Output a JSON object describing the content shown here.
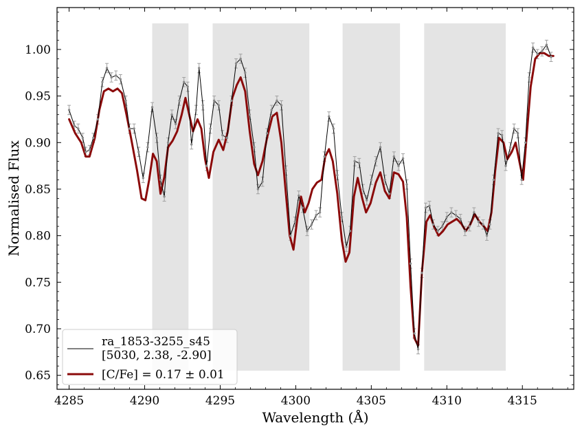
{
  "chart_data": {
    "type": "line",
    "xlabel": "Wavelength (Å)",
    "ylabel": "Normalised Flux",
    "xlim": [
      4284.2,
      4318.4
    ],
    "ylim": [
      0.635,
      1.045
    ],
    "xticks": [
      4285,
      4290,
      4295,
      4300,
      4305,
      4310,
      4315
    ],
    "yticks": [
      0.65,
      0.7,
      0.75,
      0.8,
      0.85,
      0.9,
      0.95,
      1.0
    ],
    "xtick_labels": [
      "4285",
      "4290",
      "4295",
      "4300",
      "4305",
      "4310",
      "4315"
    ],
    "ytick_labels": [
      "0.65",
      "0.70",
      "0.75",
      "0.80",
      "0.85",
      "0.90",
      "0.95",
      "1.00"
    ],
    "grid": false,
    "legend_position": "lower-left",
    "shaded_regions": [
      {
        "x0": 4290.5,
        "x1": 4292.9,
        "y0": 0.655,
        "y1": 1.028
      },
      {
        "x0": 4294.5,
        "x1": 4300.9,
        "y0": 0.655,
        "y1": 1.028
      },
      {
        "x0": 4303.1,
        "x1": 4306.9,
        "y0": 0.655,
        "y1": 1.028
      },
      {
        "x0": 4308.5,
        "x1": 4313.9,
        "y0": 0.655,
        "y1": 1.028
      }
    ],
    "shade_color": "#e4e4e4",
    "series": [
      {
        "name": "ra_1853-3255_s45",
        "name_line2": "[5030, 2.38, -2.90]",
        "role": "observed",
        "color": "#000000",
        "errorbar_color": "#a0a0a0",
        "points": [
          [
            4285.0,
            0.935,
            0.005
          ],
          [
            4285.35,
            0.918,
            0.005
          ],
          [
            4285.6,
            0.915,
            0.005
          ],
          [
            4285.9,
            0.905,
            0.005
          ],
          [
            4286.1,
            0.89,
            0.005
          ],
          [
            4286.35,
            0.892,
            0.005
          ],
          [
            4286.6,
            0.905,
            0.005
          ],
          [
            4286.9,
            0.925,
            0.005
          ],
          [
            4287.2,
            0.965,
            0.005
          ],
          [
            4287.5,
            0.98,
            0.005
          ],
          [
            4287.8,
            0.97,
            0.005
          ],
          [
            4288.1,
            0.972,
            0.005
          ],
          [
            4288.4,
            0.968,
            0.005
          ],
          [
            4288.75,
            0.945,
            0.005
          ],
          [
            4289.0,
            0.915,
            0.005
          ],
          [
            4289.3,
            0.915,
            0.005
          ],
          [
            4289.6,
            0.89,
            0.005
          ],
          [
            4289.9,
            0.862,
            0.005
          ],
          [
            4290.2,
            0.895,
            0.005
          ],
          [
            4290.5,
            0.938,
            0.005
          ],
          [
            4290.8,
            0.905,
            0.005
          ],
          [
            4291.05,
            0.86,
            0.005
          ],
          [
            4291.3,
            0.842,
            0.005
          ],
          [
            4291.55,
            0.9,
            0.005
          ],
          [
            4291.8,
            0.93,
            0.005
          ],
          [
            4292.05,
            0.92,
            0.005
          ],
          [
            4292.3,
            0.945,
            0.005
          ],
          [
            4292.6,
            0.965,
            0.005
          ],
          [
            4292.85,
            0.96,
            0.005
          ],
          [
            4293.1,
            0.898,
            0.005
          ],
          [
            4293.4,
            0.935,
            0.005
          ],
          [
            4293.6,
            0.98,
            0.005
          ],
          [
            4293.85,
            0.94,
            0.005
          ],
          [
            4294.1,
            0.875,
            0.005
          ],
          [
            4294.35,
            0.915,
            0.005
          ],
          [
            4294.6,
            0.945,
            0.005
          ],
          [
            4294.9,
            0.94,
            0.005
          ],
          [
            4295.15,
            0.908,
            0.005
          ],
          [
            4295.45,
            0.905,
            0.005
          ],
          [
            4295.75,
            0.945,
            0.005
          ],
          [
            4296.05,
            0.985,
            0.005
          ],
          [
            4296.35,
            0.99,
            0.005
          ],
          [
            4296.65,
            0.975,
            0.005
          ],
          [
            4296.95,
            0.93,
            0.005
          ],
          [
            4297.25,
            0.895,
            0.005
          ],
          [
            4297.5,
            0.85,
            0.005
          ],
          [
            4297.8,
            0.858,
            0.005
          ],
          [
            4298.1,
            0.91,
            0.005
          ],
          [
            4298.4,
            0.935,
            0.005
          ],
          [
            4298.75,
            0.945,
            0.005
          ],
          [
            4299.05,
            0.94,
            0.005
          ],
          [
            4299.35,
            0.87,
            0.005
          ],
          [
            4299.65,
            0.8,
            0.005
          ],
          [
            4299.95,
            0.815,
            0.005
          ],
          [
            4300.2,
            0.843,
            0.005
          ],
          [
            4300.45,
            0.83,
            0.005
          ],
          [
            4300.75,
            0.805,
            0.005
          ],
          [
            4301.05,
            0.812,
            0.005
          ],
          [
            4301.35,
            0.822,
            0.005
          ],
          [
            4301.6,
            0.825,
            0.005
          ],
          [
            4301.9,
            0.885,
            0.005
          ],
          [
            4302.2,
            0.928,
            0.005
          ],
          [
            4302.5,
            0.915,
            0.005
          ],
          [
            4302.75,
            0.865,
            0.005
          ],
          [
            4303.05,
            0.82,
            0.005
          ],
          [
            4303.35,
            0.788,
            0.005
          ],
          [
            4303.6,
            0.805,
            0.005
          ],
          [
            4303.9,
            0.88,
            0.005
          ],
          [
            4304.2,
            0.878,
            0.005
          ],
          [
            4304.45,
            0.85,
            0.005
          ],
          [
            4304.7,
            0.838,
            0.005
          ],
          [
            4305.0,
            0.86,
            0.005
          ],
          [
            4305.3,
            0.88,
            0.005
          ],
          [
            4305.6,
            0.895,
            0.005
          ],
          [
            4305.9,
            0.86,
            0.005
          ],
          [
            4306.2,
            0.845,
            0.005
          ],
          [
            4306.5,
            0.885,
            0.005
          ],
          [
            4306.8,
            0.875,
            0.005
          ],
          [
            4307.1,
            0.883,
            0.005
          ],
          [
            4307.35,
            0.855,
            0.005
          ],
          [
            4307.6,
            0.77,
            0.005
          ],
          [
            4307.85,
            0.695,
            0.005
          ],
          [
            4308.1,
            0.678,
            0.005
          ],
          [
            4308.35,
            0.76,
            0.005
          ],
          [
            4308.6,
            0.83,
            0.005
          ],
          [
            4308.85,
            0.832,
            0.005
          ],
          [
            4309.1,
            0.812,
            0.005
          ],
          [
            4309.4,
            0.805,
            0.005
          ],
          [
            4309.7,
            0.81,
            0.005
          ],
          [
            4310.0,
            0.82,
            0.005
          ],
          [
            4310.3,
            0.825,
            0.005
          ],
          [
            4310.6,
            0.822,
            0.005
          ],
          [
            4310.9,
            0.818,
            0.005
          ],
          [
            4311.2,
            0.805,
            0.005
          ],
          [
            4311.5,
            0.81,
            0.005
          ],
          [
            4311.8,
            0.825,
            0.005
          ],
          [
            4312.1,
            0.815,
            0.005
          ],
          [
            4312.4,
            0.812,
            0.005
          ],
          [
            4312.65,
            0.8,
            0.005
          ],
          [
            4312.85,
            0.812,
            0.005
          ],
          [
            4313.1,
            0.86,
            0.005
          ],
          [
            4313.4,
            0.91,
            0.005
          ],
          [
            4313.65,
            0.908,
            0.005
          ],
          [
            4313.9,
            0.875,
            0.005
          ],
          [
            4314.2,
            0.895,
            0.005
          ],
          [
            4314.45,
            0.915,
            0.005
          ],
          [
            4314.7,
            0.91,
            0.005
          ],
          [
            4314.95,
            0.86,
            0.005
          ],
          [
            4315.2,
            0.9,
            0.005
          ],
          [
            4315.45,
            0.97,
            0.005
          ],
          [
            4315.7,
            1.002,
            0.005
          ],
          [
            4316.0,
            0.995,
            0.005
          ],
          [
            4316.3,
            0.998,
            0.005
          ],
          [
            4316.6,
            1.005,
            0.005
          ],
          [
            4316.9,
            0.992,
            0.005
          ]
        ]
      },
      {
        "name": "[C/Fe] = 0.17 ± 0.01",
        "role": "model",
        "color": "#8b0a0a",
        "points": [
          [
            4285.0,
            0.925
          ],
          [
            4285.4,
            0.91
          ],
          [
            4285.8,
            0.9
          ],
          [
            4286.1,
            0.885
          ],
          [
            4286.35,
            0.885
          ],
          [
            4286.7,
            0.905
          ],
          [
            4287.0,
            0.935
          ],
          [
            4287.3,
            0.955
          ],
          [
            4287.6,
            0.958
          ],
          [
            4287.9,
            0.955
          ],
          [
            4288.2,
            0.958
          ],
          [
            4288.5,
            0.953
          ],
          [
            4288.8,
            0.93
          ],
          [
            4289.1,
            0.905
          ],
          [
            4289.5,
            0.87
          ],
          [
            4289.8,
            0.84
          ],
          [
            4290.05,
            0.838
          ],
          [
            4290.3,
            0.86
          ],
          [
            4290.55,
            0.888
          ],
          [
            4290.8,
            0.88
          ],
          [
            4291.05,
            0.845
          ],
          [
            4291.3,
            0.863
          ],
          [
            4291.55,
            0.895
          ],
          [
            4291.85,
            0.902
          ],
          [
            4292.15,
            0.912
          ],
          [
            4292.45,
            0.93
          ],
          [
            4292.7,
            0.948
          ],
          [
            4292.95,
            0.93
          ],
          [
            4293.2,
            0.912
          ],
          [
            4293.5,
            0.925
          ],
          [
            4293.75,
            0.915
          ],
          [
            4294.0,
            0.882
          ],
          [
            4294.25,
            0.862
          ],
          [
            4294.55,
            0.89
          ],
          [
            4294.9,
            0.903
          ],
          [
            4295.2,
            0.892
          ],
          [
            4295.5,
            0.912
          ],
          [
            4295.8,
            0.948
          ],
          [
            4296.1,
            0.962
          ],
          [
            4296.35,
            0.97
          ],
          [
            4296.65,
            0.955
          ],
          [
            4296.95,
            0.912
          ],
          [
            4297.25,
            0.877
          ],
          [
            4297.5,
            0.865
          ],
          [
            4297.8,
            0.88
          ],
          [
            4298.1,
            0.905
          ],
          [
            4298.45,
            0.928
          ],
          [
            4298.75,
            0.932
          ],
          [
            4299.05,
            0.9
          ],
          [
            4299.35,
            0.845
          ],
          [
            4299.6,
            0.8
          ],
          [
            4299.85,
            0.785
          ],
          [
            4300.1,
            0.818
          ],
          [
            4300.35,
            0.842
          ],
          [
            4300.6,
            0.825
          ],
          [
            4300.85,
            0.835
          ],
          [
            4301.1,
            0.85
          ],
          [
            4301.4,
            0.857
          ],
          [
            4301.7,
            0.86
          ],
          [
            4301.95,
            0.885
          ],
          [
            4302.2,
            0.893
          ],
          [
            4302.45,
            0.88
          ],
          [
            4302.75,
            0.845
          ],
          [
            4303.05,
            0.795
          ],
          [
            4303.3,
            0.772
          ],
          [
            4303.55,
            0.782
          ],
          [
            4303.85,
            0.842
          ],
          [
            4304.1,
            0.862
          ],
          [
            4304.4,
            0.84
          ],
          [
            4304.65,
            0.825
          ],
          [
            4304.95,
            0.835
          ],
          [
            4305.3,
            0.857
          ],
          [
            4305.6,
            0.868
          ],
          [
            4305.9,
            0.848
          ],
          [
            4306.2,
            0.84
          ],
          [
            4306.5,
            0.868
          ],
          [
            4306.8,
            0.866
          ],
          [
            4307.1,
            0.858
          ],
          [
            4307.35,
            0.82
          ],
          [
            4307.6,
            0.745
          ],
          [
            4307.85,
            0.69
          ],
          [
            4308.1,
            0.682
          ],
          [
            4308.35,
            0.76
          ],
          [
            4308.65,
            0.815
          ],
          [
            4308.9,
            0.822
          ],
          [
            4309.15,
            0.81
          ],
          [
            4309.45,
            0.8
          ],
          [
            4309.75,
            0.805
          ],
          [
            4310.05,
            0.812
          ],
          [
            4310.35,
            0.815
          ],
          [
            4310.65,
            0.818
          ],
          [
            4310.95,
            0.813
          ],
          [
            4311.25,
            0.805
          ],
          [
            4311.55,
            0.812
          ],
          [
            4311.85,
            0.823
          ],
          [
            4312.15,
            0.815
          ],
          [
            4312.45,
            0.81
          ],
          [
            4312.7,
            0.805
          ],
          [
            4312.95,
            0.825
          ],
          [
            4313.2,
            0.87
          ],
          [
            4313.45,
            0.905
          ],
          [
            4313.75,
            0.9
          ],
          [
            4314.0,
            0.882
          ],
          [
            4314.3,
            0.89
          ],
          [
            4314.55,
            0.9
          ],
          [
            4314.8,
            0.88
          ],
          [
            4315.05,
            0.86
          ],
          [
            4315.3,
            0.91
          ],
          [
            4315.55,
            0.96
          ],
          [
            4315.85,
            0.99
          ],
          [
            4316.15,
            0.996
          ],
          [
            4316.45,
            0.996
          ],
          [
            4316.75,
            0.993
          ],
          [
            4317.05,
            0.993
          ]
        ]
      }
    ]
  }
}
